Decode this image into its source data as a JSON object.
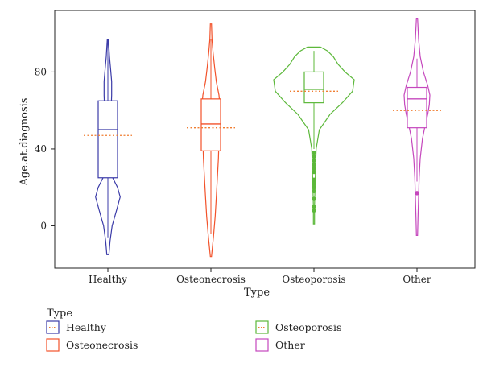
{
  "chart_data": {
    "type": "violin",
    "xlabel": "Type",
    "ylabel": "Age.at.diagnosis",
    "ylim": [
      -22,
      112
    ],
    "yticks": [
      0,
      40,
      80
    ],
    "categories": [
      "Healthy",
      "Osteonecrosis",
      "Osteoporosis",
      "Other"
    ],
    "colors": [
      "#3b3ba8",
      "#f2522a",
      "#5cb83a",
      "#c547bd"
    ],
    "mean_line_color": "#f07d30",
    "series": [
      {
        "name": "Healthy",
        "min": -15,
        "max": 97,
        "q1": 25,
        "median": 50,
        "q3": 65,
        "mean": 47,
        "whisker_low": -6,
        "whisker_high": 97,
        "outliers": [],
        "density": [
          [
            -15,
            0.02
          ],
          [
            -8,
            0.04
          ],
          [
            0,
            0.08
          ],
          [
            8,
            0.16
          ],
          [
            15,
            0.23
          ],
          [
            20,
            0.18
          ],
          [
            25,
            0.09
          ],
          [
            32,
            0.05
          ],
          [
            40,
            0.04
          ],
          [
            50,
            0.05
          ],
          [
            60,
            0.06
          ],
          [
            68,
            0.07
          ],
          [
            75,
            0.07
          ],
          [
            82,
            0.05
          ],
          [
            88,
            0.03
          ],
          [
            93,
            0.02
          ],
          [
            97,
            0.01
          ]
        ]
      },
      {
        "name": "Osteonecrosis",
        "min": -16,
        "max": 105,
        "q1": 39,
        "median": 53,
        "q3": 66,
        "mean": 51,
        "whisker_low": -4,
        "whisker_high": 97,
        "outliers": [],
        "density": [
          [
            -16,
            0.01
          ],
          [
            -5,
            0.05
          ],
          [
            5,
            0.08
          ],
          [
            15,
            0.1
          ],
          [
            25,
            0.12
          ],
          [
            35,
            0.14
          ],
          [
            45,
            0.15
          ],
          [
            55,
            0.16
          ],
          [
            62,
            0.17
          ],
          [
            68,
            0.15
          ],
          [
            75,
            0.1
          ],
          [
            82,
            0.07
          ],
          [
            90,
            0.04
          ],
          [
            97,
            0.02
          ],
          [
            105,
            0.01
          ]
        ]
      },
      {
        "name": "Osteoporosis",
        "min": 1,
        "max": 93,
        "q1": 64,
        "median": 71,
        "q3": 80,
        "mean": 70,
        "whisker_low": 40,
        "whisker_high": 91,
        "outliers": [
          38,
          36,
          34,
          32,
          30,
          28,
          24,
          22,
          20,
          18,
          14,
          10,
          8
        ],
        "density": [
          [
            1,
            0.01
          ],
          [
            10,
            0.01
          ],
          [
            20,
            0.02
          ],
          [
            30,
            0.03
          ],
          [
            40,
            0.04
          ],
          [
            50,
            0.1
          ],
          [
            58,
            0.3
          ],
          [
            64,
            0.53
          ],
          [
            70,
            0.72
          ],
          [
            76,
            0.75
          ],
          [
            80,
            0.58
          ],
          [
            84,
            0.45
          ],
          [
            88,
            0.36
          ],
          [
            91,
            0.25
          ],
          [
            93,
            0.12
          ]
        ]
      },
      {
        "name": "Other",
        "min": -5,
        "max": 108,
        "q1": 51,
        "median": 66,
        "q3": 72,
        "mean": 60,
        "whisker_low": 23,
        "whisker_high": 87,
        "outliers": [
          17
        ],
        "density": [
          [
            -5,
            0.01
          ],
          [
            5,
            0.02
          ],
          [
            15,
            0.03
          ],
          [
            25,
            0.04
          ],
          [
            35,
            0.06
          ],
          [
            45,
            0.1
          ],
          [
            52,
            0.15
          ],
          [
            58,
            0.2
          ],
          [
            63,
            0.23
          ],
          [
            68,
            0.24
          ],
          [
            73,
            0.2
          ],
          [
            80,
            0.12
          ],
          [
            88,
            0.06
          ],
          [
            97,
            0.03
          ],
          [
            108,
            0.01
          ]
        ]
      }
    ],
    "legend": {
      "title": "Type",
      "placement": "bottom",
      "items": [
        "Healthy",
        "Osteonecrosis",
        "Osteoporosis",
        "Other"
      ]
    },
    "grid": false
  }
}
